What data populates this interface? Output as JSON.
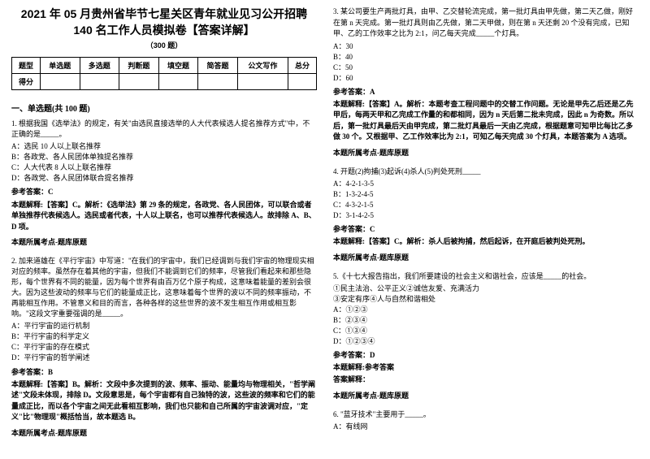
{
  "left": {
    "title": "2021 年 05 月贵州省毕节七星关区青年就业见习公开招聘 140 名工作人员模拟卷【答案详解】",
    "subtitle": "（300 题）",
    "table": {
      "headers": [
        "题型",
        "单选题",
        "多选题",
        "判断题",
        "填空题",
        "简答题",
        "公文写作",
        "总分"
      ],
      "row2": "得分"
    },
    "section": "一、单选题(共 100 题)",
    "q1": {
      "stem": "1. 根据我国《选举法》的规定，有关\"由选民直接选举的人大代表候选人提名推荐方式\"中，不正确的是_____。",
      "opts": [
        "A：选民 10 人以上联名推荐",
        "B：各政党、各人民团体单独提名推荐",
        "C：人大代表 8 人以上联名推荐",
        "D：各政党、各人民团体联合提名推荐"
      ],
      "ans": "参考答案：C",
      "explain": "本题解释:【答案】C。解析：《选举法》第 29 条的规定，各政党、各人民团体，可以联合或者单独推荐代表候选人。选民或者代表，十人以上联名，也可以推荐代表候选人。故排除 A、B、D 项。",
      "src": "本题所属考点-题库原题"
    },
    "q2": {
      "stem": "2. 加来道雄在《平行宇宙》中写道：\"在我们的宇宙中，我们已经调到与我们宇宙的物理现实相对应的频率。虽然存在着其他的宇宙，但我们不能调到它们的频率，尽管我们看起来和那些隐形，每个世界有不同的能量，因为每个世界有由百万亿个原子构成，这意味着能量的差别会很大。因为这些波动的频率与它们的能量成正比，这意味着每个世界的波以不同的频率振动，不再能相互作用。不管意义和目的而言，各种各样的这些世界的波不发生相互作用或相互影响。\"这段文字重要强调的是_____。",
      "opts": [
        "A：平行宇宙的运行机制",
        "B：平行宇宙的科学定义",
        "C：平行宇宙的存在模式",
        "D：平行宇宙的哲学阐述"
      ],
      "ans": "参考答案：B",
      "explain": "本题解释:【答案】B。解析：文段中多次提到的波、频率、振动、能量均与物理相关，\"哲学阐述\"文段未体现，排除 D。文段意思是，每个宇宙都有自己独特的波，这些波的频率和它们的能量成正比，而以各个宇宙之间无此看相互影响，我们也只能和自己所属的宇宙波调对应，\"定义\"比\"物理现\"概括恰当，故本题选 B。",
      "src": "本题所属考点-题库原题"
    }
  },
  "right": {
    "q3": {
      "stem": "3. 某公司要生产两批灯具，由甲、乙交替轮流完成，第一批灯具由甲先做，第二天乙做，刚好在第 n 天完成。第一批灯具则由乙先做，第二天甲做，则在第 n 天还剩 20 个没有完成，已知甲、乙的工作效率之比为 2:1，问乙每天完成_____个灯具。",
      "opts": [
        "A：30",
        "B：40",
        "C：50",
        "D：60"
      ],
      "ans": "参考答案：A",
      "explain": "本题解释:【答案】A。解析：本题考查工程问题中的交替工作问题。无论是甲先乙后还是乙先甲后，每两天甲和乙完成工作量的和都相同，因为 n 天后第二批未完成，因此 n 为奇数。所以后，第一批灯具最后天由甲完成，第二批灯具最后一天由乙完成，根据题意可知甲比每比乙多做 30 个。又根据甲、乙工作效率比为 2:1，可知乙每天完成 30 个灯具，本题答案为 A 选项。",
      "src": "本题所属考点-题库原题"
    },
    "q4": {
      "stem": "4. 开题(2)拘捕(3)起诉(4)杀人(5)判处死刑_____",
      "opts": [
        "A：4-2-1-3-5",
        "B：1-3-2-4-5",
        "C：4-3-2-1-5",
        "D：3-1-4-2-5"
      ],
      "ans": "参考答案：C",
      "explain": "本题解释:【答案】C。解析：杀人后被拘捕，然后起诉，在开庭后被判处死刑。",
      "src": "本题所属考点-题库原题"
    },
    "q5": {
      "stem": "5.《十七大报告指出，我们所要建设的社会主义和谐社会，应该是_____的社会。",
      "lines": [
        "①民主法治、公平正义②诚信友爱、充满活力",
        "③安定有序④人与自然和谐相处"
      ],
      "opts": [
        "A：①②③",
        "B：②③④",
        "C：①③④",
        "D：①②③④"
      ],
      "ans": "参考答案：D",
      "explainLabel": "本题解释:参考答案",
      "explain": "答案解释：",
      "src": "本题所属考点-题库原题"
    },
    "q6": {
      "stem": "6. \"蓝牙技术\"主要用于_____。",
      "opts": [
        "A：有线网"
      ]
    }
  }
}
